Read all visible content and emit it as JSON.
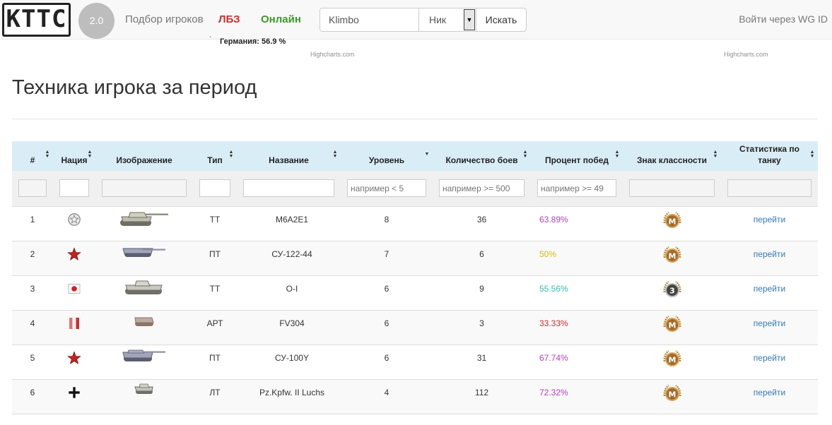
{
  "navbar": {
    "logo": "KTTC",
    "version": "2.0",
    "links": [
      "Подбор игроков",
      "ЛБЗ",
      "Онлайн"
    ],
    "search": {
      "value": "Klimbo",
      "mode": "Ник",
      "button": "Искать"
    },
    "login": "Войти через WG ID"
  },
  "chart_remnant": {
    "tooltip": "Германия: 56.9 %",
    "credits": [
      "Highcharts.com",
      "Highcharts.com"
    ]
  },
  "page_title": "Техника игрока за период",
  "table": {
    "headers": [
      "#",
      "Нация",
      "Изображение",
      "Тип",
      "Название",
      "Уровень",
      "Количество боев",
      "Процент побед",
      "Знак классности",
      "Статистика по танку"
    ],
    "filters": {
      "level_placeholder": "например < 5",
      "battles_placeholder": "например >= 500",
      "winrate_placeholder": "например >= 49"
    },
    "colors": {
      "purple": "#b63ec0",
      "yellow": "#d4bc14",
      "teal": "#3cb8b0",
      "red": "#d42e2e"
    },
    "rows": [
      {
        "num": "1",
        "nation": "ussr-icon",
        "type": "ТТ",
        "name": "M6A2E1",
        "level": "8",
        "battles": "36",
        "winrate": "63.89%",
        "winrate_color": "#b63ec0",
        "badge": "M",
        "link": "перейти"
      },
      {
        "num": "2",
        "nation": "ussr-icon",
        "type": "ПТ",
        "name": "СУ-122-44",
        "level": "7",
        "battles": "6",
        "winrate": "50%",
        "winrate_color": "#d4bc14",
        "badge": "M",
        "link": "перейти"
      },
      {
        "num": "3",
        "nation": "japan-icon",
        "type": "ТТ",
        "name": "O-I",
        "level": "6",
        "battles": "9",
        "winrate": "55.56%",
        "winrate_color": "#3cb8b0",
        "badge": "3",
        "link": "перейти"
      },
      {
        "num": "4",
        "nation": "france-icon",
        "type": "АРТ",
        "name": "FV304",
        "level": "6",
        "battles": "3",
        "winrate": "33.33%",
        "winrate_color": "#d42e2e",
        "badge": "M",
        "link": "перейти"
      },
      {
        "num": "5",
        "nation": "ussr-icon",
        "type": "ПТ",
        "name": "СУ-100Y",
        "level": "6",
        "battles": "31",
        "winrate": "67.74%",
        "winrate_color": "#b63ec0",
        "badge": "M",
        "link": "перейти"
      },
      {
        "num": "6",
        "nation": "germany-icon",
        "type": "ЛТ",
        "name": "Pz.Kpfw. II Luchs",
        "level": "4",
        "battles": "112",
        "winrate": "72.32%",
        "winrate_color": "#b63ec0",
        "badge": "M",
        "link": "перейти"
      }
    ]
  }
}
